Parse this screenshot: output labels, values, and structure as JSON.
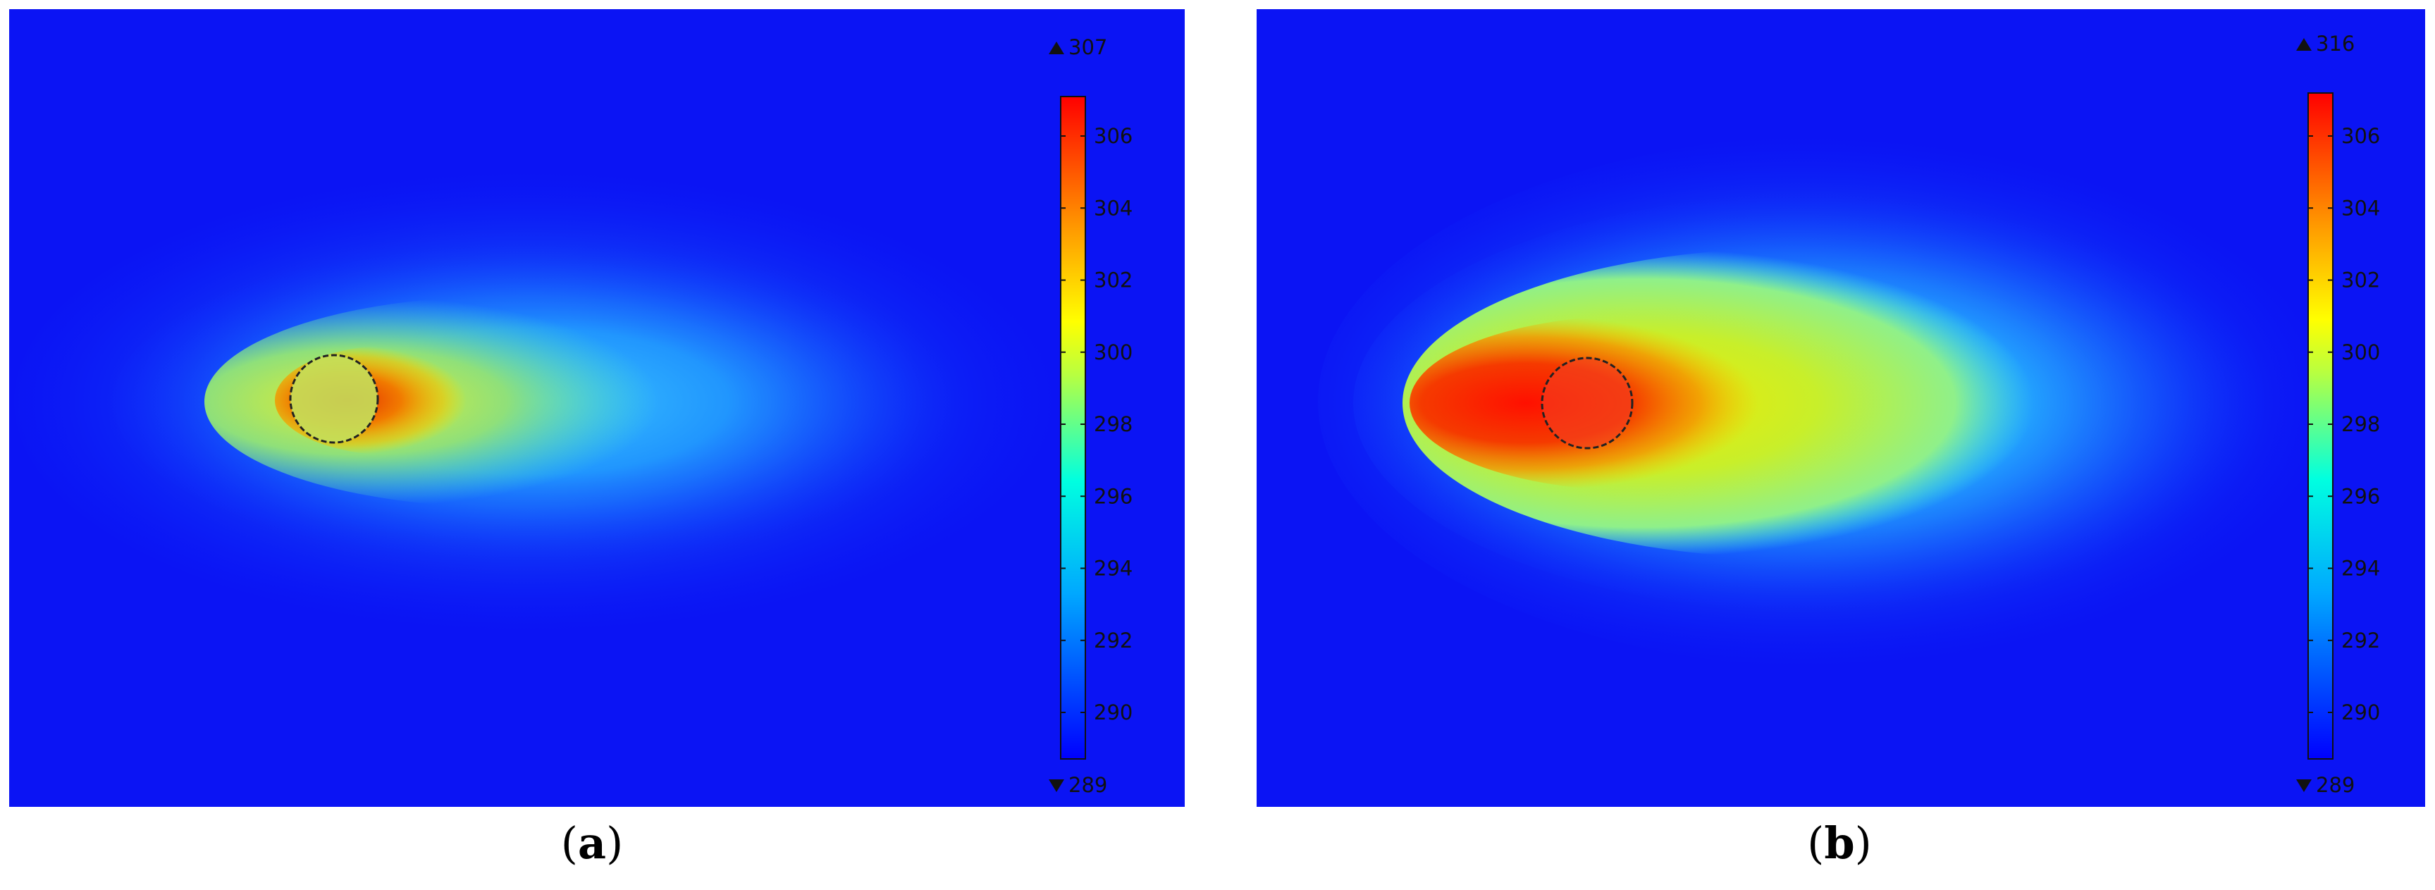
{
  "chart_data": [
    {
      "type": "heatmap",
      "caption_letter": "a",
      "colorbar": {
        "min_label": "289",
        "max_label": "307",
        "min": 289,
        "max": 307,
        "ticks": [
          306,
          304,
          302,
          300,
          298,
          296,
          294,
          292,
          290
        ]
      }
    },
    {
      "type": "heatmap",
      "caption_letter": "b",
      "colorbar": {
        "min_label": "289",
        "max_label": "316",
        "min": 289,
        "max": 316,
        "ticks": [
          306,
          304,
          302,
          300,
          298,
          296,
          294,
          292,
          290
        ]
      }
    }
  ],
  "captions": {
    "a": {
      "open": "(",
      "letter": "a",
      "close": ")"
    },
    "b": {
      "open": "(",
      "letter": "b",
      "close": ")"
    }
  }
}
